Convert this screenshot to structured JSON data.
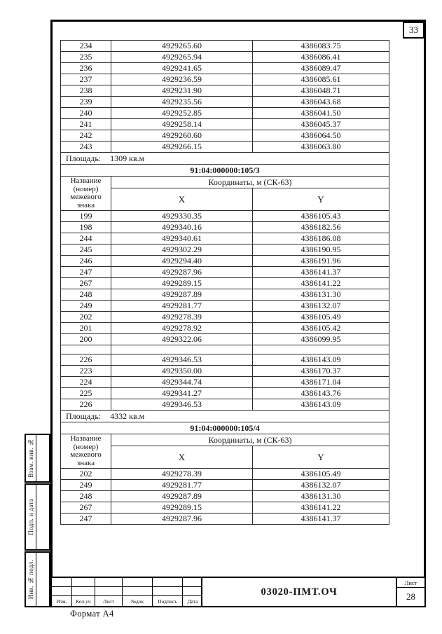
{
  "document": {
    "page_number": "33",
    "format_note": "Формат А4",
    "side_stamps": [
      "Взам. инв. №",
      "Подп. и дата",
      "Инв. № подл."
    ],
    "title_block": {
      "doc_code": "03020-ПМТ.ОЧ",
      "sheet_label": "Лист",
      "sheet_number": "28",
      "revision_columns": [
        "Изм.",
        "Кол.уч",
        "Лист",
        "№док",
        "Подпись",
        "Дата"
      ]
    }
  },
  "table": {
    "column_header": {
      "name_lines": [
        "Название",
        "(номер)",
        "межевого",
        "знака"
      ],
      "coords_label": "Координаты, м (СК-63)",
      "x_label": "X",
      "y_label": "Y"
    },
    "blocks": [
      {
        "type": "rows",
        "rows": [
          [
            "234",
            "4929265.60",
            "4386083.75"
          ],
          [
            "235",
            "4929265.94",
            "4386086.41"
          ],
          [
            "236",
            "4929241.65",
            "4386089.47"
          ],
          [
            "237",
            "4929236.59",
            "4386085.61"
          ],
          [
            "238",
            "4929231.90",
            "4386048.71"
          ],
          [
            "239",
            "4929235.56",
            "4386043.68"
          ],
          [
            "240",
            "4929252.85",
            "4386041.50"
          ],
          [
            "241",
            "4929258.14",
            "4386045.37"
          ],
          [
            "242",
            "4929260.60",
            "4386064.50"
          ],
          [
            "243",
            "4929266.15",
            "4386063.80"
          ]
        ]
      },
      {
        "type": "area",
        "label": "Площадь:",
        "value": "1309 кв.м"
      },
      {
        "type": "section",
        "title": "91:04:000000:105/3"
      },
      {
        "type": "header"
      },
      {
        "type": "rows",
        "rows": [
          [
            "199",
            "4929330.35",
            "4386105.43"
          ],
          [
            "198",
            "4929340.16",
            "4386182.56"
          ],
          [
            "244",
            "4929340.61",
            "4386186.08"
          ],
          [
            "245",
            "4929302.29",
            "4386190.95"
          ],
          [
            "246",
            "4929294.40",
            "4386191.96"
          ],
          [
            "247",
            "4929287.96",
            "4386141.37"
          ],
          [
            "267",
            "4929289.15",
            "4386141.22"
          ],
          [
            "248",
            "4929287.89",
            "4386131.30"
          ],
          [
            "249",
            "4929281.77",
            "4386132.07"
          ],
          [
            "202",
            "4929278.39",
            "4386105.49"
          ],
          [
            "201",
            "4929278.92",
            "4386105.42"
          ],
          [
            "200",
            "4929322.06",
            "4386099.95"
          ]
        ]
      },
      {
        "type": "spacer"
      },
      {
        "type": "rows",
        "rows": [
          [
            "226",
            "4929346.53",
            "4386143.09"
          ],
          [
            "223",
            "4929350.00",
            "4386170.37"
          ],
          [
            "224",
            "4929344.74",
            "4386171.04"
          ],
          [
            "225",
            "4929341.27",
            "4386143.76"
          ],
          [
            "226",
            "4929346.53",
            "4386143.09"
          ]
        ]
      },
      {
        "type": "area",
        "label": "Площадь:",
        "value": "4332 кв.м"
      },
      {
        "type": "section",
        "title": "91:04:000000:105/4"
      },
      {
        "type": "header"
      },
      {
        "type": "rows",
        "rows": [
          [
            "202",
            "4929278.39",
            "4386105.49"
          ],
          [
            "249",
            "4929281.77",
            "4386132.07"
          ],
          [
            "248",
            "4929287.89",
            "4386131.30"
          ],
          [
            "267",
            "4929289.15",
            "4386141.22"
          ],
          [
            "247",
            "4929287.96",
            "4386141.37"
          ]
        ]
      }
    ]
  }
}
